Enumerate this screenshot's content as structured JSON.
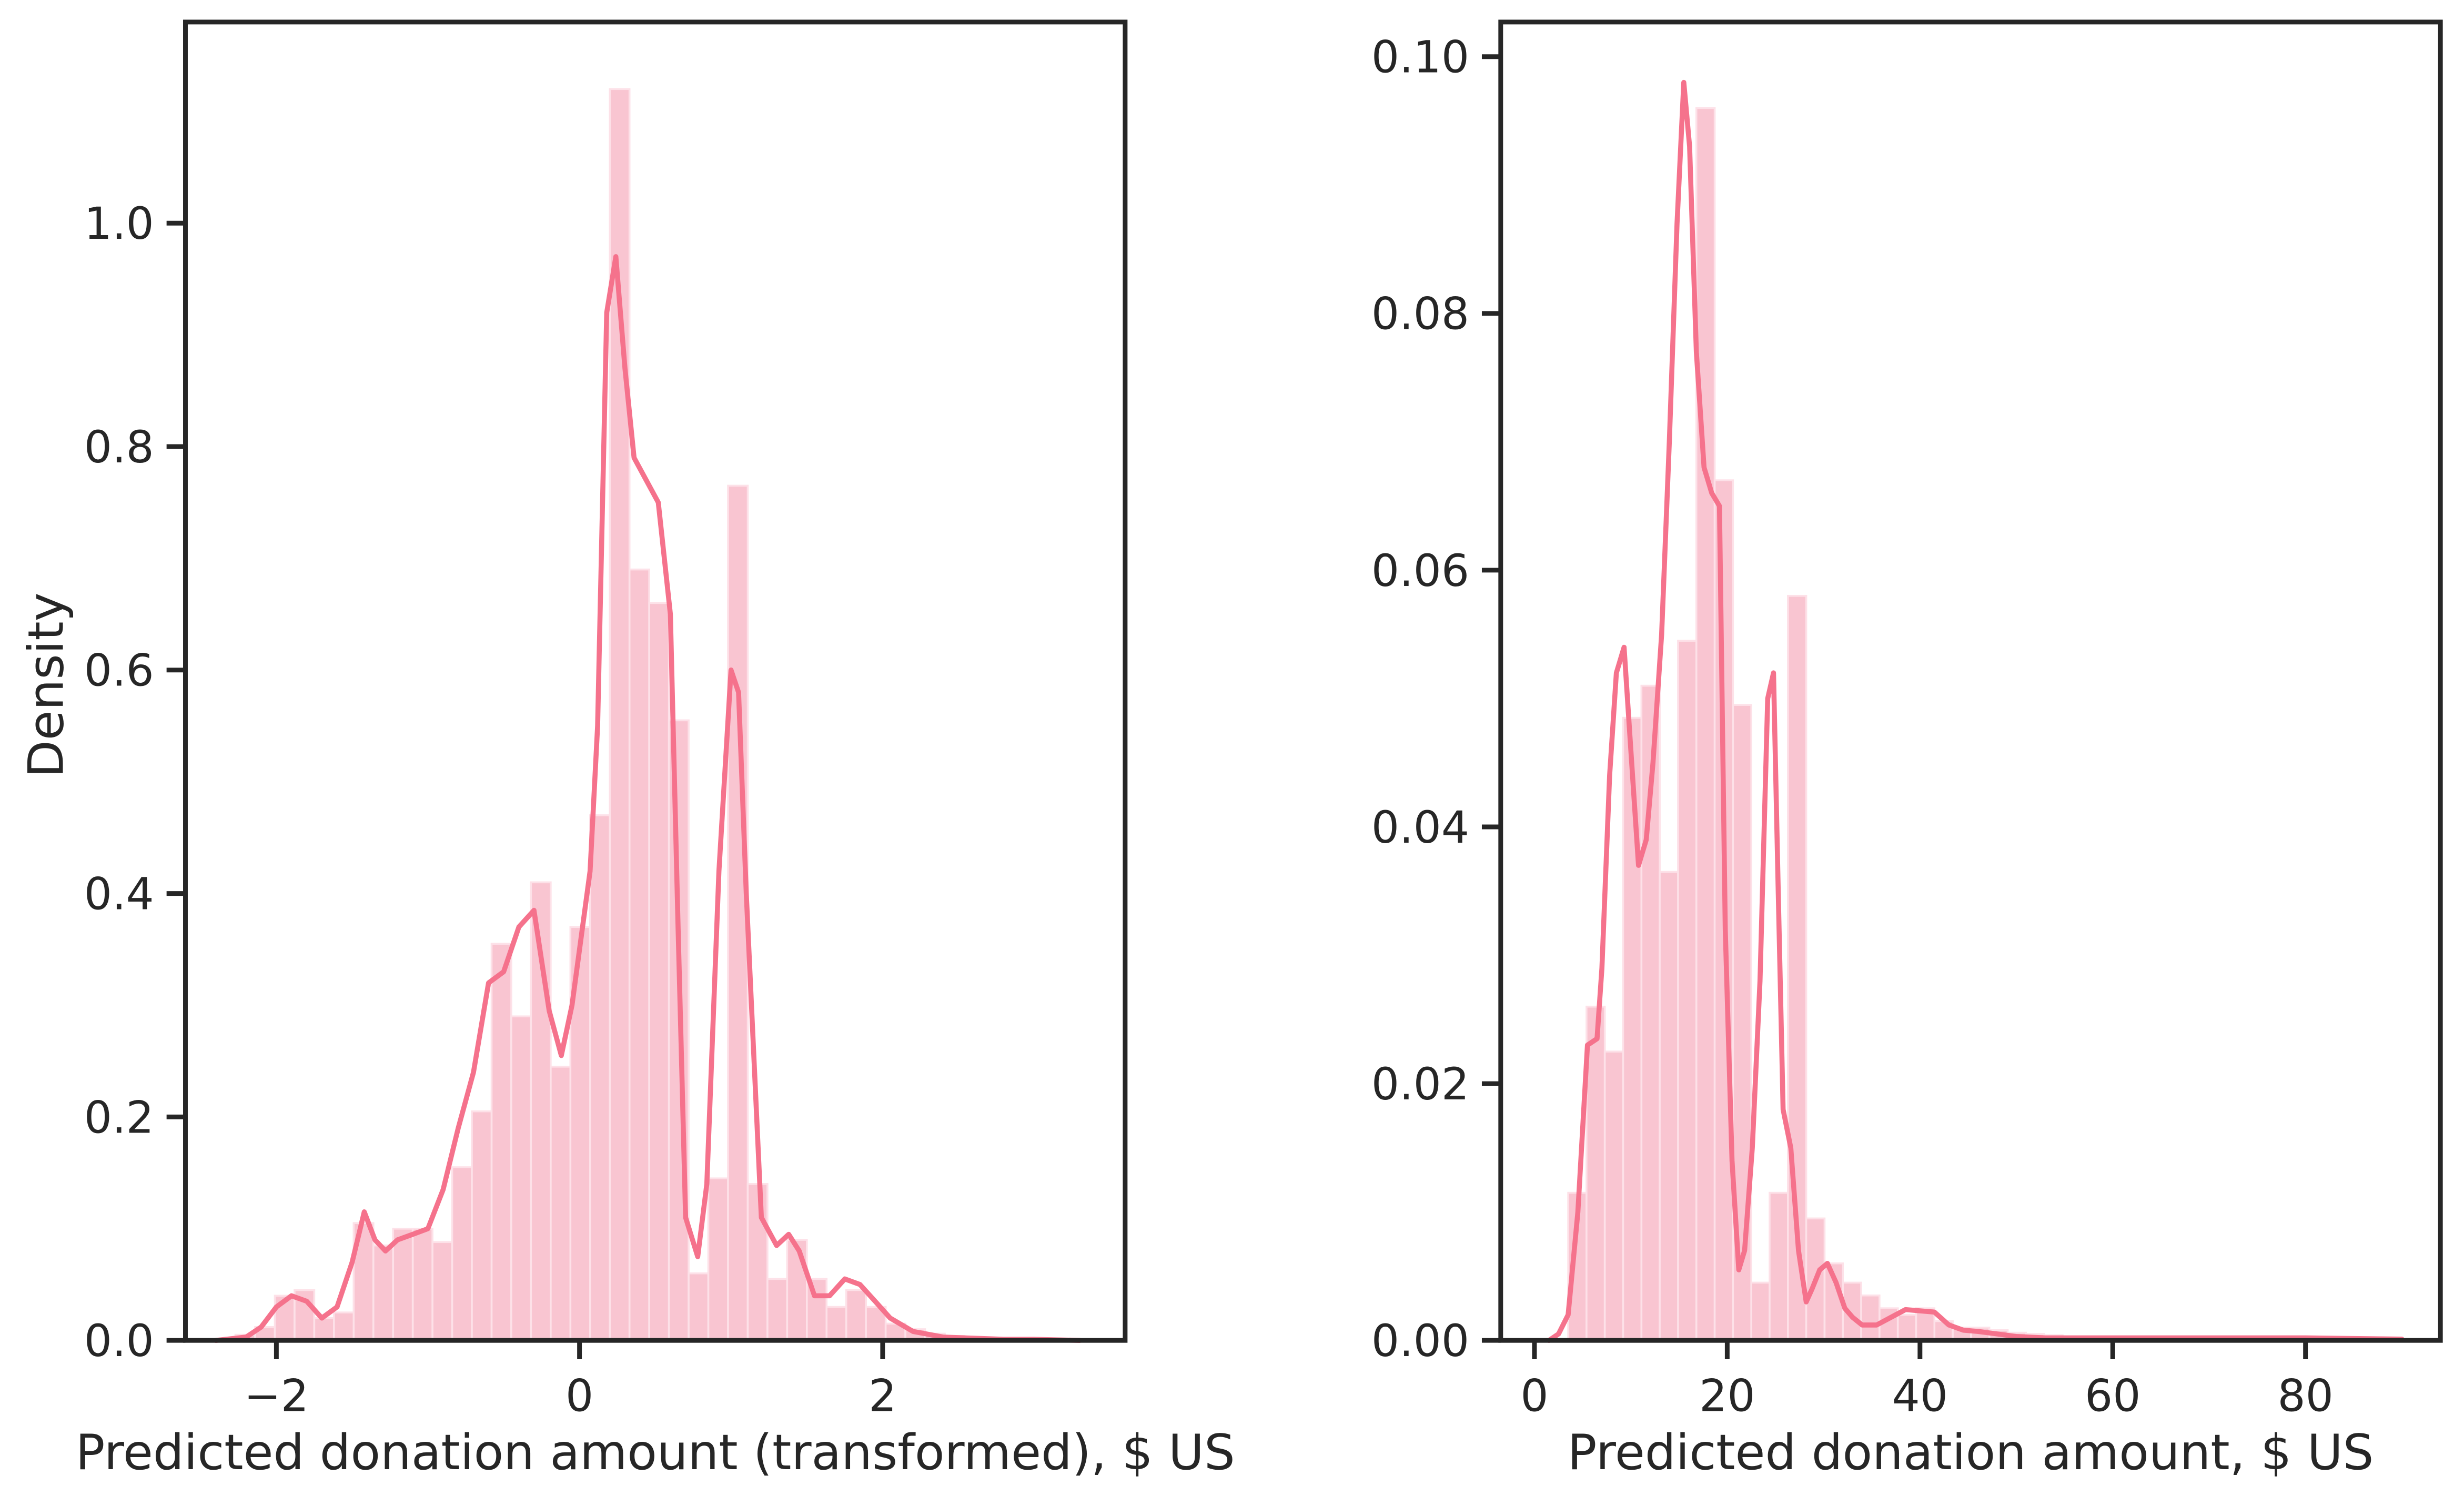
{
  "colors": {
    "bar_fill": "#f9c5d1",
    "kde_line": "#f5728c",
    "axis": "#262626",
    "background": "#ffffff"
  },
  "chart_data": [
    {
      "type": "histogram+kde",
      "title": "",
      "xlabel": "Predicted donation amount (transformed), $ US",
      "ylabel": "Density",
      "xlim": [
        -2.6,
        3.6
      ],
      "ylim": [
        0,
        1.18
      ],
      "xticks": [
        -2,
        0,
        2
      ],
      "xtick_labels": [
        "−2",
        "0",
        "2"
      ],
      "yticks": [
        0.0,
        0.2,
        0.4,
        0.6,
        0.8,
        1.0
      ],
      "ytick_labels": [
        "0.0",
        "0.2",
        "0.4",
        "0.6",
        "0.8",
        "1.0"
      ],
      "grid": false,
      "legend": null,
      "bins": {
        "left_edges": [
          -2.27,
          -2.14,
          -2.01,
          -1.88,
          -1.75,
          -1.62,
          -1.49,
          -1.36,
          -1.23,
          -1.1,
          -0.97,
          -0.84,
          -0.71,
          -0.58,
          -0.45,
          -0.32,
          -0.19,
          -0.06,
          0.07,
          0.2,
          0.33,
          0.46,
          0.59,
          0.72,
          0.85,
          0.98,
          1.11,
          1.24,
          1.37,
          1.5,
          1.63,
          1.76,
          1.89,
          2.02,
          2.15,
          2.28,
          2.41,
          2.54,
          2.67,
          2.8,
          2.93
        ],
        "width": 0.13,
        "density": [
          0.005,
          0.012,
          0.04,
          0.045,
          0.02,
          0.025,
          0.105,
          0.085,
          0.1,
          0.1,
          0.088,
          0.155,
          0.205,
          0.355,
          0.29,
          0.41,
          0.245,
          0.37,
          0.47,
          1.12,
          0.69,
          0.66,
          0.555,
          0.06,
          0.145,
          0.765,
          0.14,
          0.055,
          0.09,
          0.055,
          0.03,
          0.045,
          0.03,
          0.015,
          0.01,
          0.006,
          0.004,
          0.003,
          0.002,
          0.002,
          0.001
        ]
      },
      "kde": {
        "x": [
          -2.4,
          -2.2,
          -2.1,
          -2.0,
          -1.9,
          -1.8,
          -1.7,
          -1.6,
          -1.5,
          -1.42,
          -1.35,
          -1.28,
          -1.2,
          -1.1,
          -1.0,
          -0.9,
          -0.8,
          -0.7,
          -0.6,
          -0.5,
          -0.4,
          -0.3,
          -0.2,
          -0.12,
          -0.05,
          0.0,
          0.07,
          0.12,
          0.18,
          0.24,
          0.3,
          0.36,
          0.44,
          0.52,
          0.6,
          0.65,
          0.7,
          0.78,
          0.84,
          0.92,
          1.0,
          1.05,
          1.1,
          1.2,
          1.3,
          1.38,
          1.45,
          1.55,
          1.65,
          1.75,
          1.85,
          1.95,
          2.05,
          2.2,
          2.4,
          2.6,
          2.8,
          3.0,
          3.3
        ],
        "y": [
          0.0,
          0.003,
          0.012,
          0.03,
          0.04,
          0.035,
          0.02,
          0.03,
          0.07,
          0.115,
          0.09,
          0.08,
          0.09,
          0.095,
          0.1,
          0.135,
          0.19,
          0.24,
          0.32,
          0.33,
          0.37,
          0.385,
          0.295,
          0.255,
          0.3,
          0.35,
          0.42,
          0.55,
          0.92,
          0.97,
          0.87,
          0.79,
          0.77,
          0.75,
          0.65,
          0.37,
          0.11,
          0.075,
          0.14,
          0.42,
          0.6,
          0.58,
          0.4,
          0.11,
          0.085,
          0.095,
          0.08,
          0.04,
          0.04,
          0.055,
          0.05,
          0.035,
          0.02,
          0.008,
          0.003,
          0.002,
          0.001,
          0.001,
          0.0
        ]
      }
    },
    {
      "type": "histogram+kde",
      "title": "",
      "xlabel": "Predicted donation amount, $ US",
      "ylabel": "",
      "xlim": [
        -3.5,
        94
      ],
      "ylim": [
        0,
        0.1027
      ],
      "xticks": [
        0,
        20,
        40,
        60,
        80
      ],
      "xtick_labels": [
        "0",
        "20",
        "40",
        "60",
        "80"
      ],
      "yticks": [
        0.0,
        0.02,
        0.04,
        0.06,
        0.08,
        0.1
      ],
      "ytick_labels": [
        "0.00",
        "0.02",
        "0.04",
        "0.06",
        "0.08",
        "0.10"
      ],
      "grid": false,
      "legend": null,
      "bins": {
        "left_edges": [
          3.5,
          5.4,
          7.3,
          9.2,
          11.1,
          13.0,
          14.9,
          16.8,
          18.7,
          20.6,
          22.5,
          24.4,
          26.3,
          28.2,
          30.1,
          32.0,
          33.9,
          35.8,
          37.7,
          39.6,
          41.5,
          43.4,
          45.3,
          47.2,
          49.1,
          51.0,
          52.9,
          54.8
        ],
        "width": 1.9,
        "density": [
          0.0115,
          0.026,
          0.0225,
          0.0485,
          0.051,
          0.0365,
          0.0545,
          0.096,
          0.067,
          0.0495,
          0.0045,
          0.0115,
          0.058,
          0.0095,
          0.006,
          0.0045,
          0.0035,
          0.0025,
          0.002,
          0.0025,
          0.0015,
          0.001,
          0.001,
          0.0008,
          0.0006,
          0.0005,
          0.0004,
          0.0003
        ]
      },
      "kde": {
        "x": [
          1.5,
          2.5,
          3.5,
          4.5,
          5.5,
          6.5,
          7.0,
          7.8,
          8.5,
          9.3,
          10.0,
          10.8,
          11.6,
          12.3,
          13.2,
          14.0,
          14.8,
          15.5,
          16.1,
          16.8,
          17.6,
          18.4,
          19.2,
          19.8,
          20.5,
          21.2,
          21.8,
          22.6,
          23.4,
          24.2,
          24.8,
          25.3,
          25.8,
          26.6,
          27.4,
          28.2,
          28.8,
          29.6,
          30.4,
          31.3,
          32.2,
          33.0,
          34.0,
          35.5,
          37.0,
          38.5,
          40.0,
          41.5,
          43.0,
          44.5,
          46.0,
          48.0,
          50.0,
          53.0,
          57.0,
          62.0,
          70.0,
          80.0,
          90.0
        ],
        "y": [
          0.0,
          0.0005,
          0.002,
          0.01,
          0.023,
          0.0235,
          0.029,
          0.044,
          0.052,
          0.054,
          0.046,
          0.037,
          0.039,
          0.045,
          0.055,
          0.07,
          0.087,
          0.098,
          0.093,
          0.077,
          0.068,
          0.066,
          0.065,
          0.032,
          0.014,
          0.0055,
          0.007,
          0.015,
          0.028,
          0.05,
          0.052,
          0.035,
          0.018,
          0.015,
          0.007,
          0.003,
          0.004,
          0.0055,
          0.006,
          0.0045,
          0.0025,
          0.0018,
          0.0012,
          0.0012,
          0.0018,
          0.0024,
          0.0023,
          0.0022,
          0.0012,
          0.0008,
          0.0007,
          0.0005,
          0.0003,
          0.0002,
          0.0002,
          0.0002,
          0.0002,
          0.0002,
          0.0001
        ]
      }
    }
  ]
}
